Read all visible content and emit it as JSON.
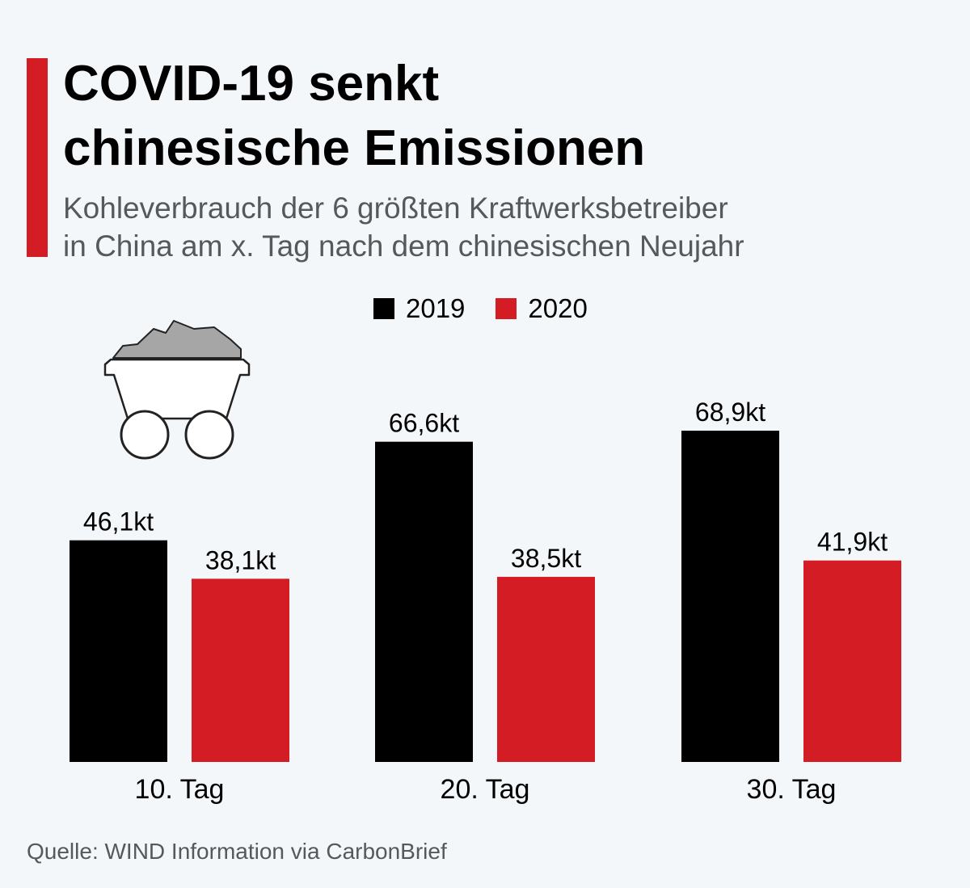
{
  "header": {
    "title_line1": "COVID-19 senkt",
    "title_line2": "chinesische Emissionen",
    "subtitle_line1": "Kohleverbrauch der 6 größten Kraftwerksbetreiber",
    "subtitle_line2": "in China am x. Tag nach dem chinesischen Neujahr"
  },
  "legend": [
    {
      "label": "2019",
      "color": "#000000"
    },
    {
      "label": "2020",
      "color": "#d41c24"
    }
  ],
  "icons": {
    "illustration": "coal-cart-icon"
  },
  "chart_data": {
    "type": "bar",
    "title": "COVID-19 senkt chinesische Emissionen",
    "subtitle": "Kohleverbrauch der 6 größten Kraftwerksbetreiber in China am x. Tag nach dem chinesischen Neujahr",
    "categories": [
      "10. Tag",
      "20. Tag",
      "30. Tag"
    ],
    "unit": "kt",
    "series": [
      {
        "name": "2019",
        "color": "#000000",
        "values": [
          46.1,
          66.6,
          68.9
        ],
        "labels": [
          "46,1kt",
          "66,6kt",
          "68,9kt"
        ]
      },
      {
        "name": "2020",
        "color": "#d41c24",
        "values": [
          38.1,
          38.5,
          41.9
        ],
        "labels": [
          "38,1kt",
          "38,5kt",
          "41,9kt"
        ]
      }
    ],
    "ylim": [
      0,
      68.9
    ],
    "xlabel": "",
    "ylabel": "",
    "grid": false,
    "legend_position": "top-center"
  },
  "source": "Quelle: WIND Information via CarbonBrief"
}
